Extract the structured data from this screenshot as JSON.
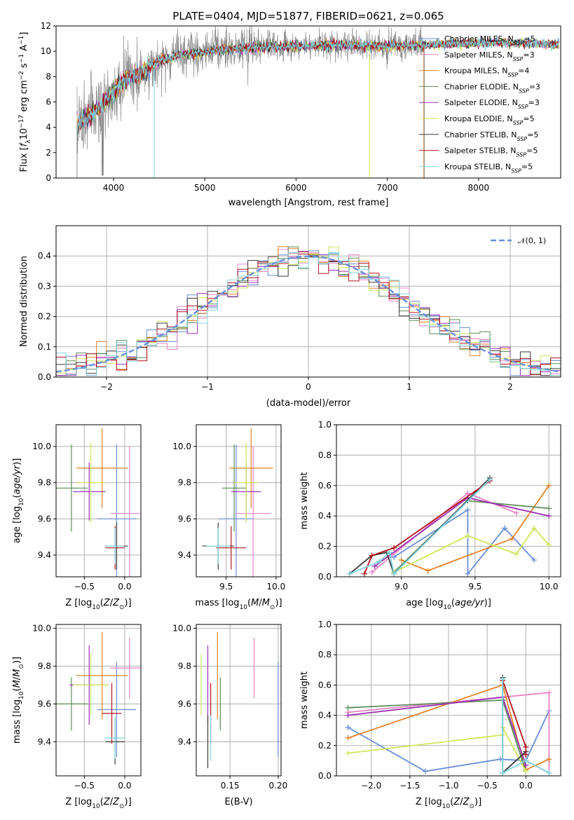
{
  "colors": {
    "chabrier_miles": "#6a8fd8",
    "salpeter_miles": "#ea85c4",
    "kroupa_miles": "#e3832a",
    "chabrier_elodie": "#5e8b5a",
    "salpeter_elodie": "#9a2fb0",
    "kroupa_elodie": "#cfe85a",
    "chabrier_stelib": "#3b3b3b",
    "salpeter_stelib": "#b0141e",
    "kroupa_stelib": "#7fd4df",
    "data": "#888888",
    "grid": "#b0b0b0"
  },
  "chart_data": [
    {
      "type": "line",
      "title": "PLATE=0404, MJD=51877, FIBERID=0621, z=0.065",
      "xlabel": "wavelength [Angstrom, rest frame]",
      "ylabel": "Flux [f_λ 10^-17 erg cm^-2 s^-1 A^-1]",
      "xlim": [
        3370,
        8900
      ],
      "ylim": [
        0,
        12
      ],
      "xticks": [
        "4000",
        "5000",
        "6000",
        "7000",
        "8000"
      ],
      "yticks": [
        "0",
        "2",
        "4",
        "6",
        "8",
        "10",
        "12"
      ],
      "grid": false,
      "legend_position": "top-right",
      "legend": [
        {
          "pre": "Chabrier MILES, N",
          "sub": "SSP",
          "post": "=5",
          "color_key": "chabrier_miles"
        },
        {
          "pre": "Salpeter MILES, N",
          "sub": "SSP",
          "post": "=3",
          "color_key": "salpeter_miles"
        },
        {
          "pre": "Kroupa MILES, N",
          "sub": "SSP",
          "post": "=4",
          "color_key": "kroupa_miles"
        },
        {
          "pre": "Chabrier ELODIE, N",
          "sub": "SSP",
          "post": "=3",
          "color_key": "chabrier_elodie"
        },
        {
          "pre": "Salpeter ELODIE, N",
          "sub": "SSP",
          "post": "=3",
          "color_key": "salpeter_elodie"
        },
        {
          "pre": "Kroupa ELODIE, N",
          "sub": "SSP",
          "post": "=5",
          "color_key": "kroupa_elodie"
        },
        {
          "pre": "Chabrier STELIB, N",
          "sub": "SSP",
          "post": "=5",
          "color_key": "chabrier_stelib"
        },
        {
          "pre": "Salpeter STELIB, N",
          "sub": "SSP",
          "post": "=5",
          "color_key": "salpeter_stelib"
        },
        {
          "pre": "Kroupa STELIB, N",
          "sub": "SSP",
          "post": "=5",
          "color_key": "kroupa_stelib"
        }
      ],
      "model_continuum": {
        "x": [
          3600,
          3700,
          3800,
          3900,
          4000,
          4100,
          4200,
          4300,
          4400,
          4500,
          4700,
          5000,
          5300,
          5600,
          6000,
          6500,
          7000,
          7400,
          7800,
          8200,
          8600,
          8900
        ],
        "y": [
          4.2,
          4.8,
          5.3,
          6.0,
          6.8,
          7.6,
          8.1,
          8.2,
          8.7,
          9.2,
          9.7,
          9.9,
          10.2,
          10.3,
          10.4,
          10.5,
          10.4,
          10.5,
          10.6,
          10.7,
          10.6,
          10.5
        ]
      }
    },
    {
      "type": "line",
      "xlabel": "(data-model)/error",
      "ylabel": "Normed distribution",
      "xlim": [
        -2.5,
        2.5
      ],
      "ylim": [
        0,
        0.5
      ],
      "xticks": [
        "−2",
        "−1",
        "0",
        "1",
        "2"
      ],
      "yticks": [
        "0.0",
        "0.1",
        "0.2",
        "0.3",
        "0.4"
      ],
      "grid": true,
      "legend_position": "top-right",
      "legend": [
        {
          "label": "𝒩(0, 1)",
          "color_key": "chabrier_miles"
        }
      ],
      "histogram_bin_width": 0.1
    },
    {
      "type": "scatter",
      "xlabel": "Z [log10(Z/Z⊙)]",
      "ylabel": "age  [log10(age/yr)]",
      "xlim": [
        -0.85,
        0.2
      ],
      "ylim": [
        9.28,
        10.12
      ],
      "xticks": [
        "−0.5",
        "0.0"
      ],
      "yticks": [
        "9.4",
        "9.6",
        "9.8",
        "10.0"
      ],
      "grid": true,
      "points": [
        {
          "series": "chabrier_miles",
          "x": -0.1,
          "xerr": 0.24,
          "y": 9.6,
          "yerr": 0.41
        },
        {
          "series": "salpeter_miles",
          "x": 0.06,
          "xerr": 0.24,
          "y": 9.63,
          "yerr": 0.37
        },
        {
          "series": "kroupa_miles",
          "x": -0.28,
          "xerr": 0.32,
          "y": 9.88,
          "yerr": 0.22
        },
        {
          "series": "chabrier_elodie",
          "x": -0.66,
          "xerr": 0.2,
          "y": 9.77,
          "yerr": 0.24
        },
        {
          "series": "salpeter_elodie",
          "x": -0.44,
          "xerr": 0.2,
          "y": 9.75,
          "yerr": 0.16
        },
        {
          "series": "kroupa_elodie",
          "x": -0.42,
          "xerr": 0.18,
          "y": 9.8,
          "yerr": 0.22
        },
        {
          "series": "chabrier_stelib",
          "x": -0.1,
          "xerr": 0.14,
          "y": 9.45,
          "yerr": 0.13
        },
        {
          "series": "salpeter_stelib",
          "x": -0.12,
          "xerr": 0.12,
          "y": 9.44,
          "yerr": 0.12
        },
        {
          "series": "kroupa_stelib",
          "x": -0.12,
          "xerr": 0.11,
          "y": 9.45,
          "yerr": 0.1
        }
      ]
    },
    {
      "type": "scatter",
      "xlabel": "mass [log10(M/M⊙)]",
      "xlim": [
        9.2,
        10.05
      ],
      "ylim": [
        9.28,
        10.12
      ],
      "xticks": [
        "9.5",
        "10.0"
      ],
      "yticks": [
        "9.4",
        "9.6",
        "9.8",
        "10.0"
      ],
      "grid": true,
      "points": [
        {
          "series": "chabrier_miles",
          "x": 9.6,
          "xerr": 0.18,
          "y": 9.6,
          "yerr": 0.41
        },
        {
          "series": "salpeter_miles",
          "x": 9.77,
          "xerr": 0.18,
          "y": 9.63,
          "yerr": 0.37
        },
        {
          "series": "kroupa_miles",
          "x": 9.75,
          "xerr": 0.22,
          "y": 9.88,
          "yerr": 0.22
        },
        {
          "series": "chabrier_elodie",
          "x": 9.58,
          "xerr": 0.12,
          "y": 9.77,
          "yerr": 0.24
        },
        {
          "series": "salpeter_elodie",
          "x": 9.7,
          "xerr": 0.15,
          "y": 9.75,
          "yerr": 0.16
        },
        {
          "series": "kroupa_elodie",
          "x": 9.7,
          "xerr": 0.12,
          "y": 9.8,
          "yerr": 0.22
        },
        {
          "series": "chabrier_stelib",
          "x": 9.42,
          "xerr": 0.16,
          "y": 9.45,
          "yerr": 0.13
        },
        {
          "series": "salpeter_stelib",
          "x": 9.55,
          "xerr": 0.15,
          "y": 9.44,
          "yerr": 0.12
        },
        {
          "series": "kroupa_stelib",
          "x": 9.42,
          "xerr": 0.12,
          "y": 9.45,
          "yerr": 0.1
        }
      ]
    },
    {
      "type": "line",
      "xlabel": "age  [log10(age/yr)]",
      "ylabel": "mass weight",
      "xlim": [
        8.56,
        10.08
      ],
      "ylim": [
        0,
        1
      ],
      "xticks": [
        "9.0",
        "9.5",
        "10.0"
      ],
      "yticks": [
        "0.0",
        "0.2",
        "0.4",
        "0.6",
        "0.8",
        "1.0"
      ],
      "grid": true,
      "series": [
        {
          "name": "Chabrier MILES",
          "key": "chabrier_miles",
          "x": [
            8.95,
            9.45,
            9.45,
            9.7,
            9.9
          ],
          "y": [
            0.13,
            0.44,
            0.02,
            0.32,
            0.11
          ]
        },
        {
          "name": "Salpeter MILES",
          "key": "salpeter_miles",
          "x": [
            8.8,
            9.45,
            9.78
          ],
          "y": [
            0.03,
            0.55,
            0.42
          ]
        },
        {
          "name": "Kroupa MILES",
          "key": "kroupa_miles",
          "x": [
            9.0,
            9.18,
            9.75,
            10.0
          ],
          "y": [
            0.11,
            0.04,
            0.25,
            0.6
          ]
        },
        {
          "name": "Chabrier ELODIE",
          "key": "chabrier_elodie",
          "x": [
            8.95,
            9.45,
            10.0
          ],
          "y": [
            0.03,
            0.5,
            0.45
          ]
        },
        {
          "name": "Salpeter ELODIE",
          "key": "salpeter_elodie",
          "x": [
            8.82,
            9.45,
            10.0
          ],
          "y": [
            0.07,
            0.52,
            0.4
          ]
        },
        {
          "name": "Kroupa ELODIE",
          "key": "kroupa_elodie",
          "x": [
            8.95,
            9.45,
            9.78,
            9.9,
            10.0
          ],
          "y": [
            0.03,
            0.27,
            0.15,
            0.32,
            0.21
          ]
        },
        {
          "name": "Chabrier STELIB",
          "key": "chabrier_stelib",
          "x": [
            8.65,
            8.8,
            8.9,
            8.95,
            9.6
          ],
          "y": [
            0.02,
            0.14,
            0.16,
            0.02,
            0.65
          ]
        },
        {
          "name": "Salpeter STELIB",
          "key": "salpeter_stelib",
          "x": [
            8.75,
            8.8,
            8.95,
            9.6
          ],
          "y": [
            0.02,
            0.14,
            0.19,
            0.63
          ]
        },
        {
          "name": "Kroupa STELIB",
          "key": "kroupa_stelib",
          "x": [
            8.65,
            8.85,
            8.92,
            8.95,
            9.6
          ],
          "y": [
            0.02,
            0.1,
            0.16,
            0.02,
            0.64
          ]
        }
      ]
    },
    {
      "type": "scatter",
      "xlabel": "Z [log10(Z/Z⊙)]",
      "ylabel": "mass [log10(M/M⊙)]",
      "xlim": [
        -0.85,
        0.2
      ],
      "ylim": [
        9.22,
        10.02
      ],
      "xticks": [
        "−0.5",
        "0.0"
      ],
      "yticks": [
        "9.4",
        "9.6",
        "9.8",
        "10.0"
      ],
      "grid": true,
      "points": [
        {
          "series": "chabrier_miles",
          "x": -0.1,
          "xerr": 0.24,
          "y": 9.57,
          "yerr": 0.25
        },
        {
          "series": "salpeter_miles",
          "x": 0.06,
          "xerr": 0.24,
          "y": 9.79,
          "yerr": 0.16
        },
        {
          "series": "kroupa_miles",
          "x": -0.28,
          "xerr": 0.32,
          "y": 9.75,
          "yerr": 0.23
        },
        {
          "series": "chabrier_elodie",
          "x": -0.66,
          "xerr": 0.2,
          "y": 9.6,
          "yerr": 0.14
        },
        {
          "series": "salpeter_elodie",
          "x": -0.44,
          "xerr": 0.24,
          "y": 9.7,
          "yerr": 0.21
        },
        {
          "series": "kroupa_elodie",
          "x": -0.42,
          "xerr": 0.22,
          "y": 9.7,
          "yerr": 0.16
        },
        {
          "series": "chabrier_stelib",
          "x": -0.12,
          "xerr": 0.12,
          "y": 9.4,
          "yerr": 0.12
        },
        {
          "series": "salpeter_stelib",
          "x": -0.16,
          "xerr": 0.12,
          "y": 9.55,
          "yerr": 0.16
        },
        {
          "series": "kroupa_stelib",
          "x": -0.12,
          "xerr": 0.12,
          "y": 9.42,
          "yerr": 0.11
        }
      ]
    },
    {
      "type": "scatter",
      "xlabel": "E(B-V)",
      "xlim": [
        0.115,
        0.203
      ],
      "ylim": [
        9.22,
        10.02
      ],
      "xticks": [
        "0.15",
        "0.20"
      ],
      "yticks": [
        "9.4",
        "9.6",
        "9.8",
        "10.0"
      ],
      "grid": true,
      "points": [
        {
          "series": "chabrier_miles",
          "x": 0.2,
          "y": 9.57,
          "yerr": 0.25
        },
        {
          "series": "salpeter_miles",
          "x": 0.175,
          "y": 9.79,
          "yerr": 0.16
        },
        {
          "series": "kroupa_miles",
          "x": 0.137,
          "y": 9.75,
          "yerr": 0.23
        },
        {
          "series": "chabrier_elodie",
          "x": 0.14,
          "y": 9.6,
          "yerr": 0.14
        },
        {
          "series": "salpeter_elodie",
          "x": 0.127,
          "y": 9.7,
          "yerr": 0.21
        },
        {
          "series": "kroupa_elodie",
          "x": 0.12,
          "y": 9.7,
          "yerr": 0.16
        },
        {
          "series": "chabrier_stelib",
          "x": 0.127,
          "y": 9.4,
          "yerr": 0.14
        },
        {
          "series": "salpeter_stelib",
          "x": 0.13,
          "y": 9.55,
          "yerr": 0.16
        },
        {
          "series": "kroupa_stelib",
          "x": 0.13,
          "y": 9.42,
          "yerr": 0.12
        }
      ]
    },
    {
      "type": "line",
      "xlabel": "Z [log10(Z/Z⊙)]",
      "ylabel": "mass weight",
      "xlim": [
        -2.45,
        0.45
      ],
      "ylim": [
        0,
        1
      ],
      "xticks": [
        "−2.0",
        "−1.5",
        "−1.0",
        "−0.5",
        "0.0"
      ],
      "yticks": [
        "0.0",
        "0.2",
        "0.4",
        "0.6",
        "0.8",
        "1.0"
      ],
      "grid": true,
      "series": [
        {
          "name": "Chabrier MILES",
          "key": "chabrier_miles",
          "x": [
            -2.3,
            -1.3,
            -0.33,
            0.0,
            0.3
          ],
          "y": [
            0.32,
            0.03,
            0.11,
            0.1,
            0.43
          ]
        },
        {
          "name": "Salpeter MILES",
          "key": "salpeter_miles",
          "x": [
            -2.3,
            0.3,
            0.3,
            0.0
          ],
          "y": [
            0.42,
            0.55,
            0.02,
            0.1
          ]
        },
        {
          "name": "Kroupa MILES",
          "key": "kroupa_miles",
          "x": [
            -2.3,
            -0.3,
            0.0,
            0.3
          ],
          "y": [
            0.25,
            0.6,
            0.04,
            0.11
          ]
        },
        {
          "name": "Chabrier ELODIE",
          "key": "chabrier_elodie",
          "x": [
            -2.3,
            -0.3,
            0.0
          ],
          "y": [
            0.45,
            0.5,
            0.03
          ]
        },
        {
          "name": "Salpeter ELODIE",
          "key": "salpeter_elodie",
          "x": [
            -2.3,
            -0.3,
            0.0
          ],
          "y": [
            0.4,
            0.52,
            0.07
          ]
        },
        {
          "name": "Kroupa ELODIE",
          "key": "kroupa_elodie",
          "x": [
            -2.3,
            -0.3,
            -0.3,
            0.0
          ],
          "y": [
            0.15,
            0.27,
            0.32,
            0.03
          ]
        },
        {
          "name": "Chabrier STELIB",
          "key": "chabrier_stelib",
          "x": [
            -0.3,
            -0.3,
            0.0,
            0.0
          ],
          "y": [
            0.65,
            0.02,
            0.16,
            0.14
          ]
        },
        {
          "name": "Salpeter STELIB",
          "key": "salpeter_stelib",
          "x": [
            -0.3,
            0.0,
            0.0
          ],
          "y": [
            0.63,
            0.19,
            0.14
          ]
        },
        {
          "name": "Kroupa STELIB",
          "key": "kroupa_stelib",
          "x": [
            -0.3,
            -0.3,
            0.0,
            0.3
          ],
          "y": [
            0.64,
            0.02,
            0.1,
            0.02
          ]
        }
      ]
    }
  ]
}
